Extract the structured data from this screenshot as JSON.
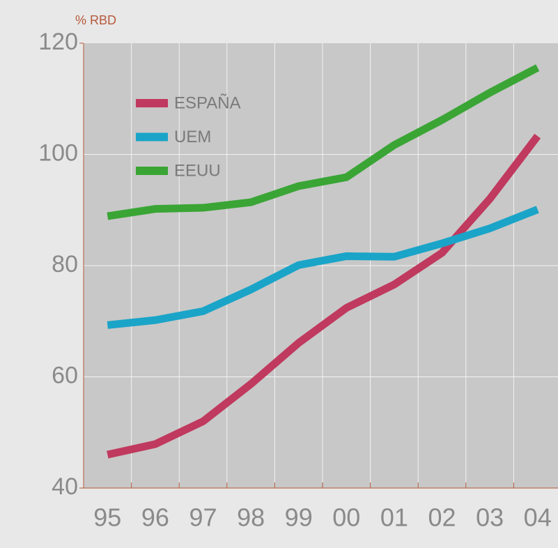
{
  "chart_data": {
    "type": "line",
    "ylabel": "% RBD",
    "categories": [
      "95",
      "96",
      "97",
      "98",
      "99",
      "00",
      "01",
      "02",
      "03",
      "04"
    ],
    "series": [
      {
        "name": "ESPAÑA",
        "color": "#c0395e",
        "values": [
          46.0,
          47.9,
          52.0,
          58.7,
          66.1,
          72.4,
          76.6,
          82.3,
          92.0,
          103.3
        ]
      },
      {
        "name": "UEM",
        "color": "#1aa4c8",
        "values": [
          69.3,
          70.2,
          71.8,
          75.7,
          80.1,
          81.7,
          81.6,
          84.0,
          86.7,
          90.1
        ]
      },
      {
        "name": "EEUU",
        "color": "#3aa535",
        "values": [
          88.9,
          90.2,
          90.4,
          91.4,
          94.3,
          95.9,
          101.7,
          106.2,
          111.1,
          115.6
        ]
      }
    ],
    "ylim": [
      40,
      120
    ],
    "yticks": [
      40,
      60,
      80,
      100,
      120
    ],
    "grid": true,
    "legend": "upper left"
  }
}
